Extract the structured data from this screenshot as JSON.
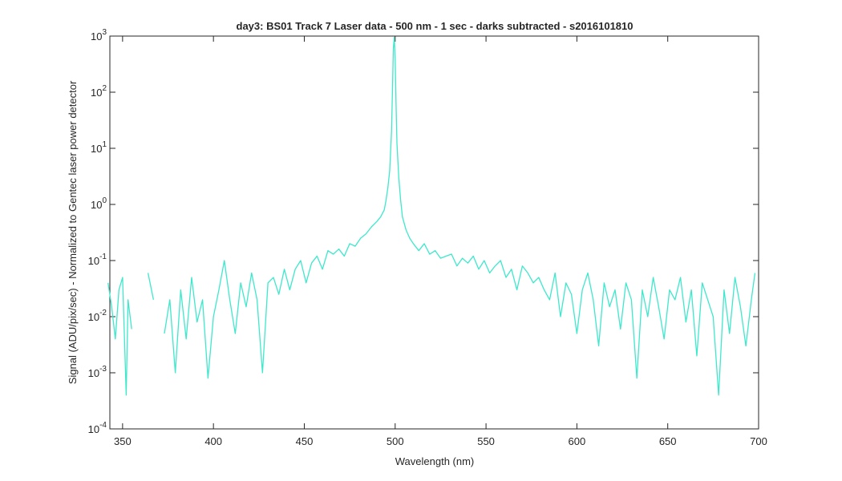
{
  "chart_data": {
    "type": "line",
    "title": "day3: BS01  Track 7 Laser data - 500 nm - 1 sec - darks subtracted - s2016101810",
    "x_label": "Wavelength (nm)",
    "y_label": "Signal (ADU/pix/sec) - Normalized to Gentec laser power detector",
    "log_y": true,
    "xlim": [
      343,
      700
    ],
    "ylim": [
      0.0001,
      1000
    ],
    "xticks": [
      350,
      400,
      450,
      500,
      550,
      600,
      650,
      700
    ],
    "yticks": [
      {
        "value": 0.0001,
        "label": "10^-4"
      },
      {
        "value": 0.001,
        "label": "10^-3"
      },
      {
        "value": 0.01,
        "label": "10^-2"
      },
      {
        "value": 0.1,
        "label": "10^-1"
      },
      {
        "value": 1,
        "label": "10^0"
      },
      {
        "value": 10,
        "label": "10^1"
      },
      {
        "value": 100,
        "label": "10^2"
      },
      {
        "value": 1000,
        "label": "10^3"
      }
    ],
    "x": [
      342,
      344,
      346,
      348,
      350,
      352,
      353,
      355,
      358,
      361,
      364,
      367,
      370,
      373,
      376,
      379,
      382,
      385,
      388,
      391,
      394,
      397,
      400,
      403,
      406,
      409,
      412,
      415,
      418,
      421,
      424,
      427,
      430,
      433,
      436,
      439,
      442,
      445,
      448,
      451,
      454,
      457,
      460,
      463,
      466,
      469,
      472,
      475,
      478,
      481,
      484,
      487,
      490,
      492,
      494,
      495,
      496,
      497,
      498,
      498.5,
      499,
      499.5,
      500,
      500.5,
      501,
      502,
      503,
      504,
      506,
      508,
      510,
      513,
      516,
      519,
      522,
      525,
      528,
      531,
      534,
      537,
      540,
      543,
      546,
      549,
      552,
      555,
      558,
      561,
      564,
      567,
      570,
      573,
      576,
      579,
      582,
      585,
      588,
      591,
      594,
      597,
      600,
      603,
      606,
      609,
      612,
      615,
      618,
      621,
      624,
      627,
      630,
      633,
      636,
      639,
      642,
      645,
      648,
      651,
      654,
      657,
      660,
      663,
      666,
      669,
      672,
      675,
      678,
      681,
      684,
      687,
      690,
      693,
      696,
      698
    ],
    "series": [
      {
        "color": "#3ee8cc",
        "values": [
          0.04,
          0.015,
          0.004,
          0.03,
          0.05,
          0.0004,
          0.02,
          0.006,
          null,
          null,
          0.06,
          0.02,
          null,
          0.005,
          0.02,
          0.001,
          0.03,
          0.004,
          0.05,
          0.008,
          0.02,
          0.0008,
          0.01,
          0.03,
          0.1,
          0.02,
          0.005,
          0.04,
          0.015,
          0.06,
          0.02,
          0.001,
          0.04,
          0.05,
          0.025,
          0.07,
          0.03,
          0.07,
          0.1,
          0.04,
          0.09,
          0.12,
          0.07,
          0.15,
          0.13,
          0.16,
          0.12,
          0.2,
          0.18,
          0.25,
          0.3,
          0.4,
          0.5,
          0.6,
          0.8,
          1.2,
          2,
          4,
          20,
          100,
          600,
          950,
          400,
          60,
          12,
          3,
          1.2,
          0.6,
          0.35,
          0.25,
          0.2,
          0.15,
          0.2,
          0.13,
          0.15,
          0.11,
          0.12,
          0.13,
          0.08,
          0.11,
          0.09,
          0.12,
          0.07,
          0.1,
          0.06,
          0.08,
          0.1,
          0.05,
          0.07,
          0.03,
          0.08,
          0.06,
          0.04,
          0.05,
          0.03,
          0.02,
          0.06,
          0.01,
          0.04,
          0.025,
          0.005,
          0.03,
          0.06,
          0.02,
          0.003,
          0.04,
          0.015,
          0.03,
          0.006,
          0.04,
          0.02,
          0.0008,
          0.03,
          0.01,
          0.05,
          0.015,
          0.004,
          0.03,
          0.02,
          0.05,
          0.008,
          0.03,
          0.002,
          0.04,
          0.02,
          0.01,
          0.0004,
          0.03,
          0.005,
          0.05,
          0.015,
          0.003,
          0.02,
          0.06
        ]
      }
    ]
  }
}
